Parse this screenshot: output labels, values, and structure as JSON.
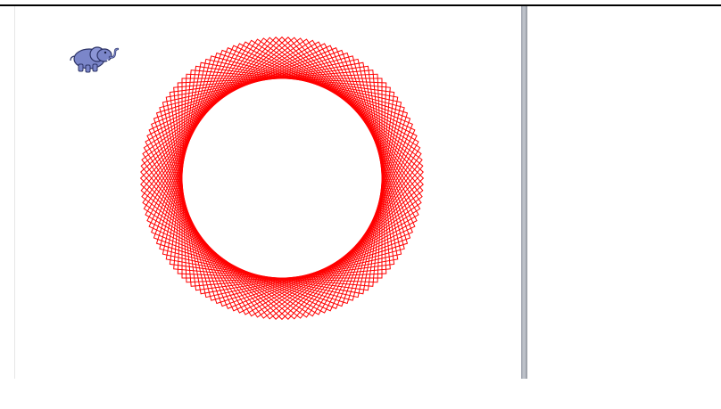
{
  "title_banner": {
    "text_color": "#ff2a00",
    "note": ""
  },
  "stage": {
    "pen_color": "#ff0000",
    "pattern_shape": "rotated-square-rosette",
    "square_count": 36,
    "background": "#ffffff"
  },
  "sprite": {
    "icon": "elephant-icon",
    "color": "#7b86c9"
  },
  "divider": {
    "color": "#a3a8b0"
  }
}
